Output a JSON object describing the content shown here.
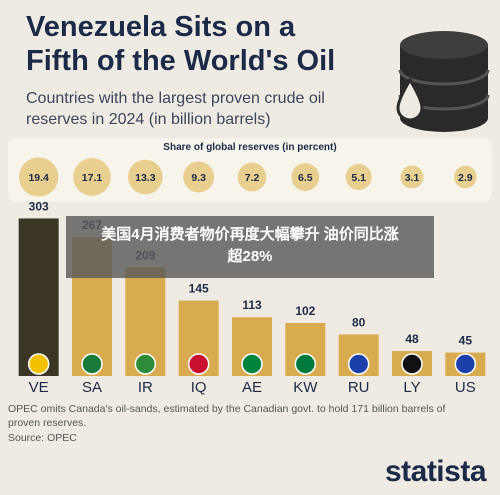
{
  "chart_data": {
    "type": "bar",
    "title": "Venezuela Sits on a Fifth of the World's Oil",
    "subtitle": "Countries with the largest proven crude oil reserves in 2024 (in billion barrels)",
    "share_label": "Share of global reserves (in percent)",
    "categories": [
      "VE",
      "SA",
      "IR",
      "IQ",
      "AE",
      "KW",
      "RU",
      "LY",
      "US"
    ],
    "values": [
      303,
      267,
      209,
      145,
      113,
      102,
      80,
      48,
      45
    ],
    "shares": [
      19.4,
      17.1,
      13.3,
      9.3,
      7.2,
      6.5,
      5.1,
      3.1,
      2.9
    ],
    "colors": [
      "#3b3524",
      "#d8ab50",
      "#d8ab50",
      "#d8ab50",
      "#d8ab50",
      "#d8ab50",
      "#d8ab50",
      "#d8ab50",
      "#d8ab50"
    ],
    "share_color": "#e8cf8f",
    "note": "OPEC omits Canada's oil-sands, estimated by the Canadian govt. to hold 171 billion barrels of proven reserves.",
    "source": "Source: OPEC"
  },
  "brand": "statista",
  "overlay": "美国4月消费者物价再度大幅攀升 油价同比涨超28%"
}
